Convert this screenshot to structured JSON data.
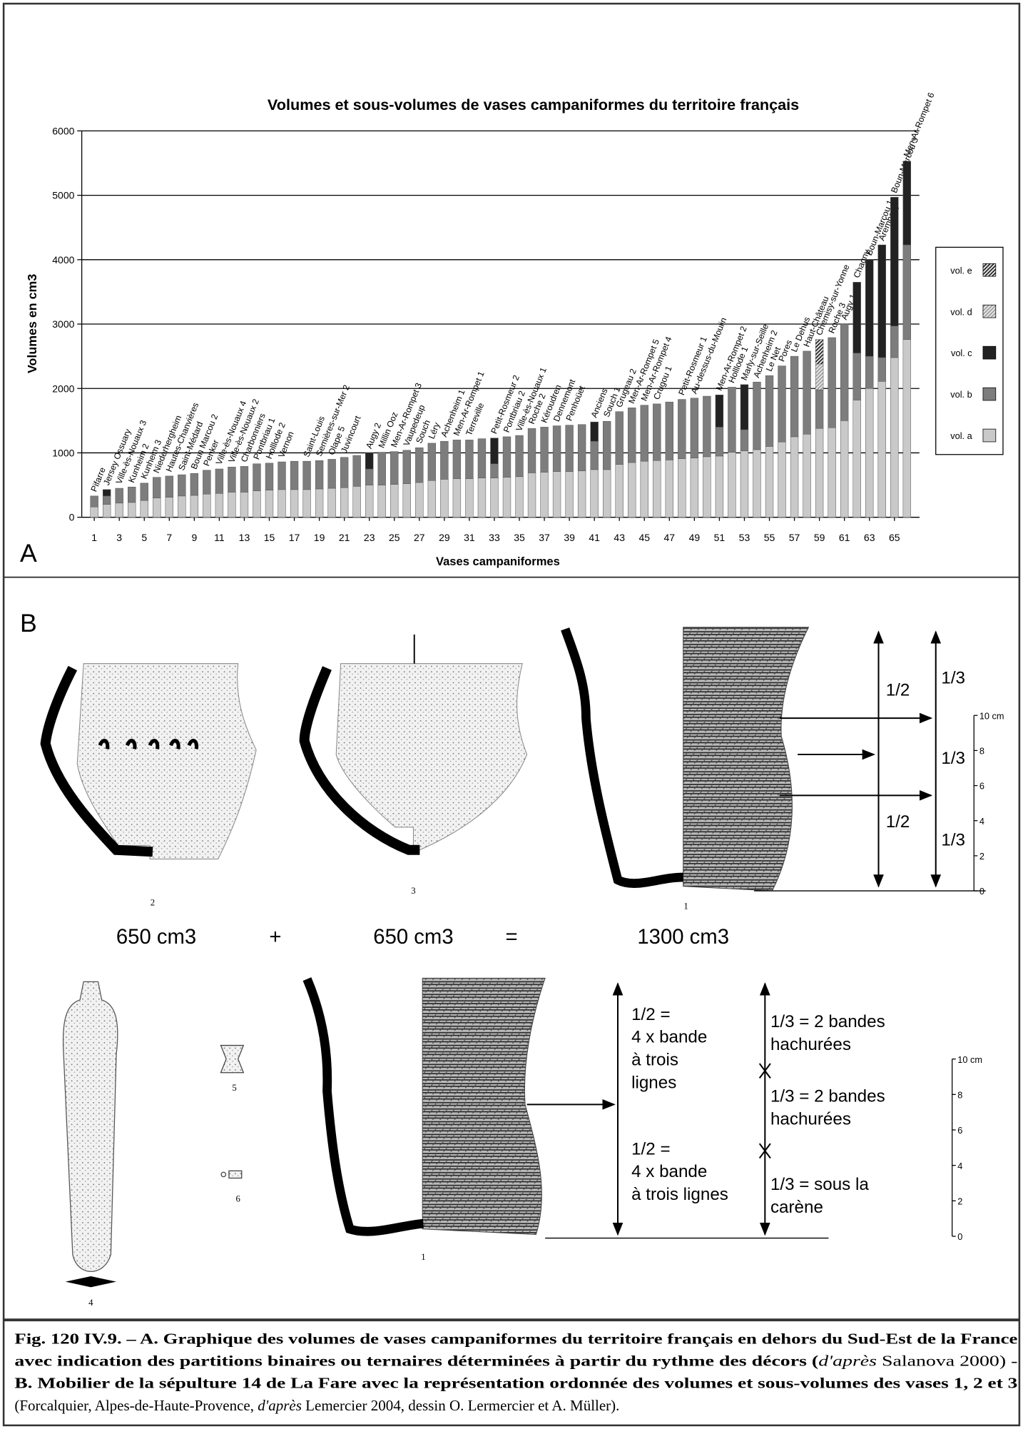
{
  "chart_data": {
    "type": "stacked_bar",
    "title": "Volumes et sous-volumes de vases campaniformes du territoire français",
    "xlabel": "Vases campaniformes",
    "ylabel": "Volumes en cm3",
    "x": [
      1,
      2,
      3,
      4,
      5,
      6,
      7,
      8,
      9,
      10,
      11,
      12,
      13,
      14,
      15,
      16,
      17,
      18,
      19,
      20,
      21,
      22,
      23,
      24,
      25,
      26,
      27,
      28,
      29,
      30,
      31,
      32,
      33,
      34,
      35,
      36,
      37,
      38,
      39,
      40,
      41,
      42,
      43,
      44,
      45,
      46,
      47,
      48,
      49,
      50,
      51,
      52,
      53,
      54,
      55,
      56,
      57,
      58,
      59,
      60,
      61,
      62,
      63,
      64,
      65,
      66
    ],
    "xlim": [
      0,
      67
    ],
    "xticks": [
      1,
      3,
      5,
      7,
      9,
      11,
      13,
      15,
      17,
      19,
      21,
      23,
      25,
      27,
      29,
      31,
      33,
      35,
      37,
      39,
      41,
      43,
      45,
      47,
      49,
      51,
      53,
      55,
      57,
      59,
      61,
      63,
      65
    ],
    "ylim": [
      0,
      6000
    ],
    "yticks": [
      0,
      1000,
      2000,
      3000,
      4000,
      5000,
      6000
    ],
    "grid": true,
    "bar_labels": [
      "Pifarre",
      "Jersey Ossuary",
      "Ville-ès-Nouaux 3",
      "Kunheim 2",
      "Kunheim 3",
      "Niederhergheim",
      "Hautes-Chanvières",
      "Saint-Médard",
      "Boun Marcou 2",
      "Penker",
      "Ville-ès-Nouaux 4",
      "Ville-ès-Nouaux 2",
      "Charbonniers",
      "Pontbriau 1",
      "Holllode 2",
      "Vernon",
      null,
      "Saint-Louis",
      "Semières-sur-Mer 2",
      "Olape 5",
      "Juvincourt",
      null,
      "Augy 2",
      "Millin Ooz",
      "Men-Ar-Rompet 3",
      "Vaupedeup",
      "Souch",
      "Léry",
      "Achenheim 1",
      "Men-Ar-Rompet 1",
      "Terreville",
      null,
      "Petit-Rosmeur 2",
      "Pontbriau 2",
      "Ville-ès-Nouaux 1",
      "Roche 2",
      "Kéroudren",
      "Dennemont",
      "Penhoüet",
      null,
      "Anciens",
      "Souch 1",
      "Grugeau 2",
      "Men-Ar-Rompet 5",
      "Men-Ar-Rompet 4",
      "Crugou 1",
      null,
      "Petit-Rosmeur 1",
      "Au-dessus-du-Moulin",
      null,
      "Men-Ar-Rompet 2",
      "Holllode 1",
      "Marly-sur-Seille",
      "Achenheim 2",
      "Le Net",
      "Pores",
      "Le Dehus",
      "Haut-Château",
      "Chemisy-sur-Yonne",
      "Roche 3",
      "Augy 1",
      "Chagny",
      "Boun-Marcou 1",
      "Aremberg",
      "Boun-Marcou 3",
      "Men-Ar-Rompet 6"
    ],
    "series": [
      {
        "name": "vol. a",
        "color": "#c9c9c9",
        "hatch": false,
        "values": [
          160,
          200,
          220,
          230,
          260,
          300,
          310,
          330,
          340,
          360,
          370,
          390,
          390,
          410,
          420,
          430,
          430,
          430,
          440,
          450,
          460,
          480,
          500,
          500,
          510,
          520,
          540,
          570,
          590,
          600,
          600,
          610,
          610,
          620,
          630,
          690,
          700,
          710,
          710,
          720,
          740,
          740,
          820,
          850,
          870,
          880,
          890,
          910,
          920,
          940,
          950,
          1010,
          1030,
          1050,
          1100,
          1170,
          1250,
          1290,
          1380,
          1390,
          1500,
          1820,
          2000,
          2110,
          2480,
          2760
        ]
      },
      {
        "name": "vol. b",
        "color": "#7d7d7d",
        "hatch": false,
        "values": [
          170,
          130,
          230,
          240,
          270,
          320,
          330,
          330,
          340,
          370,
          380,
          390,
          400,
          420,
          420,
          430,
          440,
          440,
          440,
          450,
          470,
          480,
          250,
          510,
          510,
          520,
          540,
          580,
          590,
          600,
          600,
          610,
          220,
          630,
          640,
          690,
          700,
          710,
          720,
          720,
          440,
          750,
          820,
          850,
          870,
          880,
          900,
          920,
          930,
          940,
          450,
          1010,
          330,
          1050,
          1100,
          1180,
          1250,
          1290,
          600,
          1400,
          1500,
          730,
          500,
          370,
          490,
          1470
        ]
      },
      {
        "name": "vol. c",
        "color": "#222222",
        "hatch": false,
        "values": [
          0,
          100,
          0,
          0,
          0,
          0,
          0,
          0,
          0,
          0,
          0,
          0,
          0,
          0,
          0,
          0,
          0,
          0,
          0,
          0,
          0,
          0,
          250,
          0,
          0,
          0,
          0,
          0,
          0,
          0,
          0,
          0,
          400,
          0,
          0,
          0,
          0,
          0,
          0,
          0,
          300,
          0,
          0,
          0,
          0,
          0,
          0,
          0,
          0,
          0,
          500,
          0,
          700,
          0,
          0,
          0,
          0,
          0,
          0,
          0,
          0,
          1100,
          1500,
          1750,
          2000,
          1300
        ]
      },
      {
        "name": "vol. d",
        "color": "#999999",
        "hatch": true,
        "values": [
          0,
          0,
          0,
          0,
          0,
          0,
          0,
          0,
          0,
          0,
          0,
          0,
          0,
          0,
          0,
          0,
          0,
          0,
          0,
          0,
          0,
          0,
          0,
          0,
          0,
          0,
          0,
          0,
          0,
          0,
          0,
          0,
          0,
          0,
          0,
          0,
          0,
          0,
          0,
          0,
          0,
          0,
          0,
          0,
          0,
          0,
          0,
          0,
          0,
          0,
          0,
          0,
          0,
          0,
          0,
          0,
          0,
          0,
          400,
          0,
          0,
          0,
          0,
          0,
          0,
          0
        ]
      },
      {
        "name": "vol. e",
        "color": "#1a1a1a",
        "hatch": true,
        "values": [
          0,
          0,
          0,
          0,
          0,
          0,
          0,
          0,
          0,
          0,
          0,
          0,
          0,
          0,
          0,
          0,
          0,
          0,
          0,
          0,
          0,
          0,
          0,
          0,
          0,
          0,
          0,
          0,
          0,
          0,
          0,
          0,
          0,
          0,
          0,
          0,
          0,
          0,
          0,
          0,
          0,
          0,
          0,
          0,
          0,
          0,
          0,
          0,
          0,
          0,
          0,
          0,
          0,
          0,
          0,
          0,
          0,
          0,
          380,
          0,
          0,
          0,
          0,
          0,
          0,
          0
        ]
      }
    ],
    "legend": "right"
  },
  "panel_a": {
    "label": "A"
  },
  "panel_b": {
    "label": "B",
    "figure_numbers": [
      "2",
      "3",
      "1",
      "1",
      "4",
      "5",
      "6"
    ],
    "equation": [
      "650 cm3",
      "+",
      "650 cm3",
      "=",
      "1300 cm3"
    ],
    "proportions": [
      "1/2",
      "1/2",
      "1/3",
      "1/3",
      "1/3"
    ],
    "scale_top": [
      "10 cm",
      "8",
      "6",
      "4",
      "2",
      "0"
    ],
    "annotations": [
      [
        "1/2 =",
        "4 x bande",
        "à trois",
        "lignes"
      ],
      [
        "1/2 =",
        "4 x bande",
        "à trois lignes"
      ],
      [
        "1/3 = 2 bandes",
        "hachurées"
      ],
      [
        "1/3 = 2 bandes",
        "hachurées"
      ],
      [
        "1/3 = sous la",
        "carène"
      ]
    ],
    "scale_bottom": [
      "10 cm",
      "8",
      "6",
      "4",
      "2",
      "0"
    ]
  },
  "caption": [
    [
      {
        "text": "Fig. 120 IV.9. – A. Graphique des volumes de vases campaniformes du territoire français en dehors du Sud-Est de la France",
        "style": "bold"
      }
    ],
    [
      {
        "text": "avec indication des partitions binaires ou ternaires déterminées à partir du rythme des décors (",
        "style": "bold"
      },
      {
        "text": "d'après",
        "style": "italic"
      },
      {
        "text": " Salanova 2000) -",
        "style": "normal"
      }
    ],
    [
      {
        "text": "B. Mobilier de la sépulture 14 de La Fare avec la représentation ordonnée des volumes et sous-volumes des vases 1, 2 et 3",
        "style": "bold"
      }
    ],
    [
      {
        "text": " (Forcalquier, Alpes-de-Haute-Provence, ",
        "style": "normal"
      },
      {
        "text": "d'après",
        "style": "italic"
      },
      {
        "text": " Lemercier 2004, dessin O. Lermercier et A. Müller).",
        "style": "normal"
      }
    ]
  ]
}
